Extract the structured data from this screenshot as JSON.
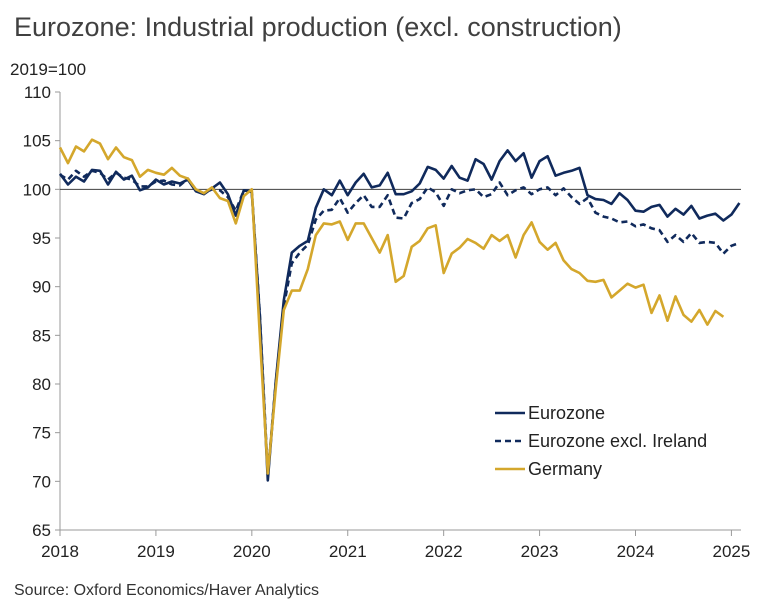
{
  "chart_data": {
    "type": "line",
    "title": "Eurozone: Industrial production (excl. construction)",
    "ylabel": "2019=100",
    "xlabel": "",
    "source": "Source: Oxford Economics/Haver Analytics",
    "ylim": [
      65,
      110
    ],
    "xlim": [
      2018,
      2025.1
    ],
    "yticks": [
      65,
      70,
      75,
      80,
      85,
      90,
      95,
      100,
      105,
      110
    ],
    "xticks": [
      2018,
      2019,
      2020,
      2021,
      2022,
      2023,
      2024,
      2025
    ],
    "reference_line": 100,
    "legend_position": "lower-right",
    "x_start": 2018,
    "x_step_months": 1,
    "series": [
      {
        "name": "Eurozone",
        "color": "#102a5c",
        "dash": "solid",
        "values": [
          101.6,
          100.5,
          101.3,
          100.8,
          102.0,
          101.9,
          100.5,
          101.8,
          101.0,
          101.4,
          99.9,
          100.2,
          101.0,
          100.5,
          100.8,
          100.6,
          101.0,
          99.8,
          99.5,
          100.1,
          100.7,
          99.5,
          97.3,
          99.9,
          99.7,
          87.0,
          70.1,
          80.3,
          88.6,
          93.5,
          94.2,
          94.7,
          98.1,
          100.0,
          99.4,
          100.9,
          99.4,
          100.7,
          101.6,
          100.2,
          100.4,
          101.7,
          99.5,
          99.5,
          99.8,
          100.6,
          102.3,
          102.0,
          101.1,
          102.4,
          101.2,
          100.9,
          103.1,
          102.6,
          101.0,
          102.9,
          104.0,
          102.9,
          103.7,
          101.2,
          102.9,
          103.4,
          101.4,
          101.7,
          101.9,
          102.2,
          99.4,
          99.0,
          98.9,
          98.5,
          99.6,
          98.9,
          97.8,
          97.7,
          98.2,
          98.4,
          97.2,
          98.0,
          97.4,
          98.3,
          97.0,
          97.3,
          97.5,
          96.8,
          97.4,
          98.6
        ]
      },
      {
        "name": "Eurozone excl. Ireland",
        "color": "#102a5c",
        "dash": "dashed",
        "values": [
          101.5,
          101.0,
          101.9,
          101.3,
          101.9,
          101.7,
          101.0,
          101.7,
          101.2,
          101.0,
          100.3,
          100.3,
          100.8,
          100.9,
          100.5,
          100.4,
          101.1,
          99.9,
          99.6,
          100.0,
          99.9,
          99.2,
          97.8,
          99.9,
          99.8,
          87.2,
          70.7,
          80.2,
          88.0,
          92.4,
          93.5,
          94.3,
          96.9,
          97.8,
          97.9,
          99.1,
          97.6,
          98.6,
          99.4,
          98.2,
          98.2,
          99.4,
          97.1,
          97.0,
          98.6,
          99.0,
          100.2,
          99.7,
          98.3,
          100.0,
          99.6,
          99.9,
          100.0,
          99.2,
          99.5,
          100.7,
          99.4,
          99.9,
          100.2,
          99.5,
          100.0,
          100.2,
          99.4,
          100.1,
          99.2,
          98.5,
          99.1,
          97.6,
          97.2,
          97.0,
          96.6,
          96.7,
          96.2,
          96.4,
          96.0,
          95.8,
          94.6,
          95.3,
          94.6,
          95.5,
          94.5,
          94.6,
          94.5,
          93.4,
          94.2,
          94.5
        ]
      },
      {
        "name": "Germany",
        "color": "#d4a72c",
        "dash": "solid",
        "values": [
          104.3,
          102.7,
          104.4,
          103.9,
          105.1,
          104.7,
          103.1,
          104.3,
          103.3,
          103.0,
          101.3,
          102.0,
          101.7,
          101.5,
          102.2,
          101.4,
          101.1,
          100.0,
          99.6,
          100.2,
          99.1,
          98.8,
          96.5,
          99.3,
          100.0,
          85.0,
          70.8,
          79.6,
          87.6,
          89.6,
          89.6,
          91.8,
          95.3,
          96.5,
          96.4,
          96.7,
          94.8,
          96.5,
          96.5,
          95.0,
          93.5,
          95.3,
          90.5,
          91.1,
          94.1,
          94.7,
          96.0,
          96.3,
          91.4,
          93.4,
          94.0,
          94.9,
          94.5,
          93.9,
          95.3,
          94.7,
          95.3,
          93.0,
          95.3,
          96.6,
          94.6,
          93.8,
          94.5,
          92.7,
          91.8,
          91.4,
          90.6,
          90.5,
          90.7,
          88.9,
          89.6,
          90.3,
          89.9,
          90.2,
          87.3,
          89.1,
          86.5,
          89.0,
          87.1,
          86.4,
          87.6,
          86.1,
          87.5,
          86.9
        ]
      }
    ]
  }
}
